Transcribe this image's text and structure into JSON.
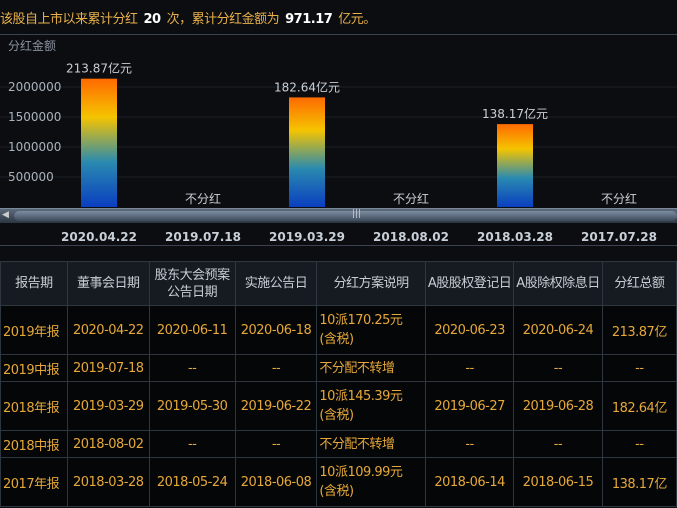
{
  "summary": {
    "prefix": "该股自上市以来累计分红",
    "count": "20",
    "mid": "次，累计分红金额为",
    "total": "971.17",
    "suffix": "亿元。"
  },
  "chart_data": {
    "type": "bar",
    "ylabel": "分红金额",
    "ylim": [
      0,
      2300000
    ],
    "yticks": [
      500000,
      1000000,
      1500000,
      2000000
    ],
    "ytick_labels": [
      "500000",
      "1000000",
      "1500000",
      "2000000"
    ],
    "grid": true,
    "categories": [
      "2020.04.22",
      "2019.07.18",
      "2019.03.29",
      "2018.08.02",
      "2018.03.28",
      "2017.07.28"
    ],
    "values": [
      2138700,
      0,
      1826400,
      0,
      1381700,
      0
    ],
    "data_labels": [
      "213.87亿元",
      "不分红",
      "182.64亿元",
      "不分红",
      "138.17亿元",
      "不分红"
    ],
    "colors": {
      "top": "#ff6a00",
      "mid": "#f5c400",
      "low": "#2a8ab0",
      "bottom": "#0a3ec0"
    }
  },
  "table": {
    "headers": [
      "报告期",
      "董事会日期",
      "股东大会预案公告日期",
      "实施公告日",
      "分红方案说明",
      "A股股权登记日",
      "A股除权除息日",
      "分红总额"
    ],
    "rows": [
      [
        "2019年报",
        "2020-04-22",
        "2020-06-11",
        "2020-06-18",
        "10派170.25元(含税)",
        "2020-06-23",
        "2020-06-24",
        "213.87亿"
      ],
      [
        "2019中报",
        "2019-07-18",
        "--",
        "--",
        "不分配不转增",
        "--",
        "--",
        "--"
      ],
      [
        "2018年报",
        "2019-03-29",
        "2019-05-30",
        "2019-06-22",
        "10派145.39元(含税)",
        "2019-06-27",
        "2019-06-28",
        "182.64亿"
      ],
      [
        "2018中报",
        "2018-08-02",
        "--",
        "--",
        "不分配不转增",
        "--",
        "--",
        "--"
      ],
      [
        "2017年报",
        "2018-03-28",
        "2018-05-24",
        "2018-06-08",
        "10派109.99元(含税)",
        "2018-06-14",
        "2018-06-15",
        "138.17亿"
      ]
    ]
  }
}
